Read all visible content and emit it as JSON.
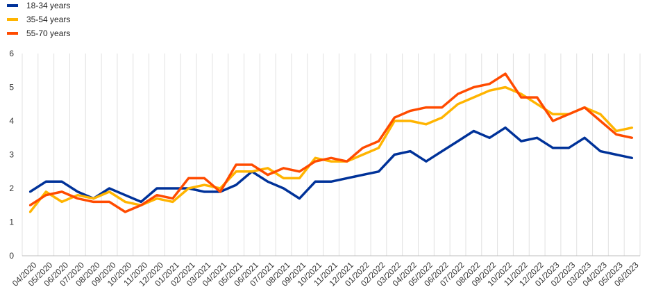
{
  "chart_data": {
    "type": "line",
    "title": "",
    "xlabel": "",
    "ylabel": "",
    "ylim": [
      0,
      6
    ],
    "yticks": [
      "0",
      "1",
      "2",
      "3",
      "4",
      "5",
      "6"
    ],
    "grid": "vertical",
    "legend_position": "top-left",
    "categories": [
      "04/2020",
      "05/2020",
      "06/2020",
      "07/2020",
      "08/2020",
      "09/2020",
      "10/2020",
      "11/2020",
      "12/2020",
      "01/2021",
      "02/2021",
      "03/2021",
      "04/2021",
      "05/2021",
      "06/2021",
      "07/2021",
      "08/2021",
      "09/2021",
      "10/2021",
      "11/2021",
      "12/2021",
      "01/2022",
      "02/2022",
      "03/2022",
      "04/2022",
      "05/2022",
      "06/2022",
      "07/2022",
      "08/2022",
      "09/2022",
      "10/2022",
      "11/2022",
      "12/2022",
      "01/2023",
      "02/2023",
      "03/2023",
      "04/2023",
      "05/2023",
      "06/2023"
    ],
    "series": [
      {
        "name": "18-34 years",
        "color": "#003299",
        "values": [
          1.9,
          2.2,
          2.2,
          1.9,
          1.7,
          2.0,
          1.8,
          1.6,
          2.0,
          2.0,
          2.0,
          1.9,
          1.9,
          2.1,
          2.5,
          2.2,
          2.0,
          1.7,
          2.2,
          2.2,
          2.3,
          2.4,
          2.5,
          3.0,
          3.1,
          2.8,
          3.1,
          3.4,
          3.7,
          3.5,
          3.8,
          3.4,
          3.5,
          3.2,
          3.2,
          3.5,
          3.1,
          3.0,
          2.9
        ]
      },
      {
        "name": "35-54 years",
        "color": "#FFB400",
        "values": [
          1.3,
          1.9,
          1.6,
          1.8,
          1.7,
          1.9,
          1.6,
          1.5,
          1.7,
          1.6,
          2.0,
          2.1,
          2.0,
          2.5,
          2.5,
          2.6,
          2.3,
          2.3,
          2.9,
          2.8,
          2.8,
          3.0,
          3.2,
          4.0,
          4.0,
          3.9,
          4.1,
          4.5,
          4.7,
          4.9,
          5.0,
          4.8,
          4.5,
          4.2,
          4.2,
          4.4,
          4.2,
          3.7,
          3.8
        ]
      },
      {
        "name": "55-70 years",
        "color": "#FF4B00",
        "values": [
          1.5,
          1.8,
          1.9,
          1.7,
          1.6,
          1.6,
          1.3,
          1.5,
          1.8,
          1.7,
          2.3,
          2.3,
          1.9,
          2.7,
          2.7,
          2.4,
          2.6,
          2.5,
          2.8,
          2.9,
          2.8,
          3.2,
          3.4,
          4.1,
          4.3,
          4.4,
          4.4,
          4.8,
          5.0,
          5.1,
          5.4,
          4.7,
          4.7,
          4.0,
          4.2,
          4.4,
          4.0,
          3.6,
          3.5
        ]
      }
    ]
  }
}
